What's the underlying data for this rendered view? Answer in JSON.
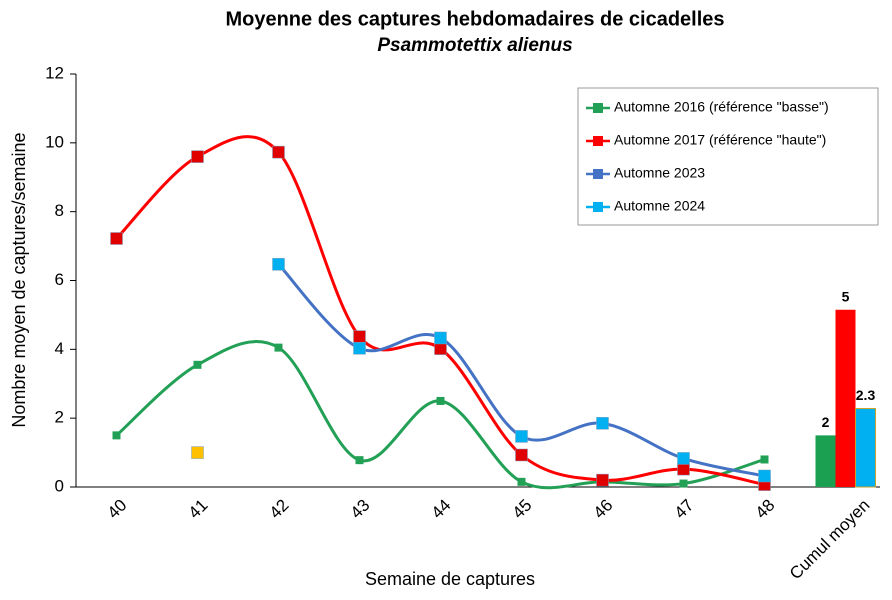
{
  "chart_data": {
    "type": "line",
    "title": "Moyenne des captures hebdomadaires de cicadelles",
    "subtitle": "Psammotettix alienus",
    "x_label": "Semaine de captures",
    "y_label": "Nombre moyen de captures/semaine",
    "categories": [
      "40",
      "41",
      "42",
      "43",
      "44",
      "45",
      "46",
      "47",
      "48"
    ],
    "ylim": [
      0,
      12
    ],
    "yticks": [
      0,
      2,
      4,
      6,
      8,
      10,
      12
    ],
    "series": [
      {
        "name": "Automne 2016 (référence \"basse\")",
        "color": "#22a055",
        "marker_color": "#22a055",
        "show_line": true,
        "values": [
          1.5,
          3.55,
          4.05,
          0.78,
          2.5,
          0.15,
          0.15,
          0.1,
          0.8
        ]
      },
      {
        "name": "Automne 2017 (référence \"haute\")",
        "color": "#ff0000",
        "marker_color": "#e00000",
        "show_line": true,
        "values": [
          7.22,
          9.6,
          9.73,
          4.37,
          4.02,
          0.93,
          0.2,
          0.52,
          0.07
        ]
      },
      {
        "name": "Automne 2023",
        "color": "#4472c4",
        "marker_color": "#00b0f0",
        "show_line": true,
        "values": [
          null,
          null,
          6.47,
          4.03,
          4.33,
          1.47,
          1.85,
          0.83,
          0.32
        ]
      },
      {
        "name": "Automne 2024",
        "color": "#00b0f0",
        "marker_color": "#ffc000",
        "show_line": false,
        "values": [
          null,
          1.0,
          null,
          null,
          null,
          null,
          null,
          null,
          null
        ]
      }
    ],
    "cumul": {
      "category": "Cumul moyen",
      "values": [
        1.5,
        5.15,
        2.28
      ],
      "value_labels": [
        "2",
        "5",
        "2.3"
      ],
      "colors": [
        "#1aa050",
        "#ff0000",
        "#00b0f0"
      ]
    }
  }
}
